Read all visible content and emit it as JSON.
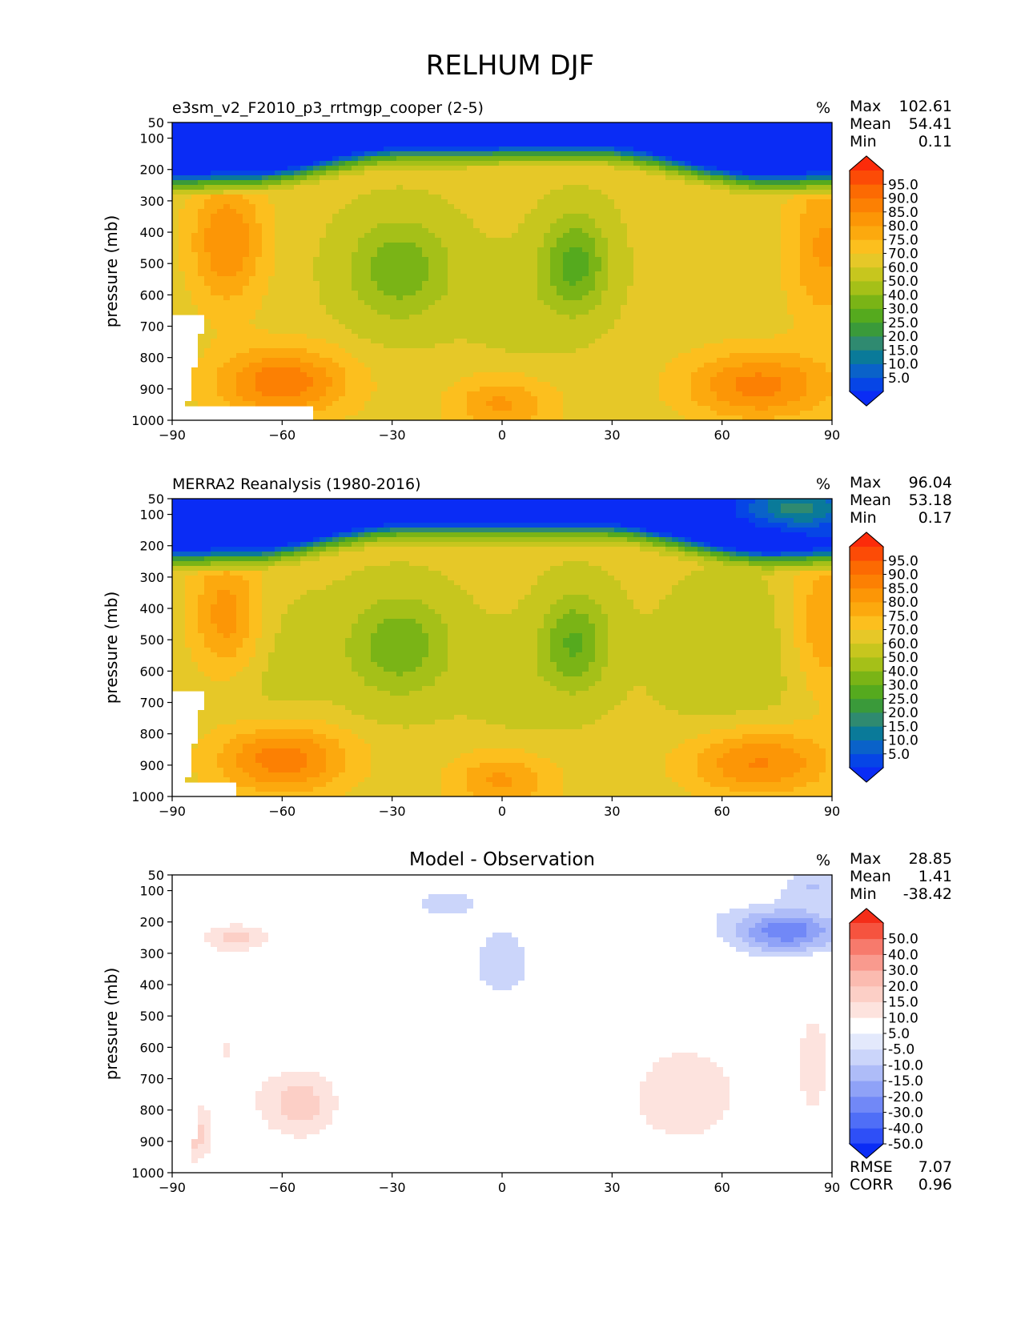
{
  "figure": {
    "title": "RELHUM DJF"
  },
  "palettes": {
    "field": [
      "#0a2cf5",
      "#0645e6",
      "#0a62c9",
      "#0a7a99",
      "#2f8a70",
      "#3a9a3a",
      "#55aa1e",
      "#7ab416",
      "#a5c018",
      "#c7c61e",
      "#e6c828",
      "#fcbf1e",
      "#fca90e",
      "#fc9606",
      "#fc8003",
      "#fc6a02",
      "#fc4b06",
      "#fc2b0a"
    ],
    "diff": [
      "#0a2cf5",
      "#2e4ff7",
      "#4f6ef7",
      "#7188f7",
      "#8fa2f7",
      "#aebcf8",
      "#cbd5fa",
      "#e3e9fc",
      "#ffffff",
      "#fde3de",
      "#fccfc6",
      "#fbbbb0",
      "#f99a8e",
      "#f77a6c",
      "#f6533f",
      "#f52d18"
    ]
  },
  "chart_data": [
    {
      "type": "contour",
      "panel": "model",
      "title_left": "e3sm_v2_F2010_p3_rrtmgp_cooper (2-5)",
      "title_center": "",
      "units": "%",
      "ylabel": "pressure (mb)",
      "xlabel": "",
      "xlim": [
        -90,
        90
      ],
      "ylim": [
        50,
        1000
      ],
      "xticks": [
        "−90",
        "−60",
        "−30",
        "0",
        "30",
        "60",
        "90"
      ],
      "yticks": [
        "50",
        "100",
        "200",
        "300",
        "400",
        "500",
        "600",
        "700",
        "800",
        "900",
        "1000"
      ],
      "levels": [
        "95.0",
        "90.0",
        "85.0",
        "80.0",
        "75.0",
        "70.0",
        "60.0",
        "50.0",
        "40.0",
        "30.0",
        "25.0",
        "20.0",
        "15.0",
        "10.0",
        "5.0"
      ],
      "stats": {
        "top": [
          {
            "label": "Max",
            "value": "102.61"
          },
          {
            "label": "Mean",
            "value": "54.41"
          },
          {
            "label": "Min",
            "value": "0.11"
          }
        ],
        "bottom": []
      }
    },
    {
      "type": "contour",
      "panel": "observation",
      "title_left": "MERRA2 Reanalysis (1980-2016)",
      "title_center": "",
      "units": "%",
      "ylabel": "pressure (mb)",
      "xlabel": "",
      "xlim": [
        -90,
        90
      ],
      "ylim": [
        50,
        1000
      ],
      "xticks": [
        "−90",
        "−60",
        "−30",
        "0",
        "30",
        "60",
        "90"
      ],
      "yticks": [
        "50",
        "100",
        "200",
        "300",
        "400",
        "500",
        "600",
        "700",
        "800",
        "900",
        "1000"
      ],
      "levels": [
        "95.0",
        "90.0",
        "85.0",
        "80.0",
        "75.0",
        "70.0",
        "60.0",
        "50.0",
        "40.0",
        "30.0",
        "25.0",
        "20.0",
        "15.0",
        "10.0",
        "5.0"
      ],
      "stats": {
        "top": [
          {
            "label": "Max",
            "value": "96.04"
          },
          {
            "label": "Mean",
            "value": "53.18"
          },
          {
            "label": "Min",
            "value": "0.17"
          }
        ],
        "bottom": []
      }
    },
    {
      "type": "contour",
      "panel": "difference",
      "title_left": "",
      "title_center": "Model - Observation",
      "units": "%",
      "ylabel": "pressure (mb)",
      "xlabel": "",
      "xlim": [
        -90,
        90
      ],
      "ylim": [
        50,
        1000
      ],
      "xticks": [
        "−90",
        "−60",
        "−30",
        "0",
        "30",
        "60",
        "90"
      ],
      "yticks": [
        "50",
        "100",
        "200",
        "300",
        "400",
        "500",
        "600",
        "700",
        "800",
        "900",
        "1000"
      ],
      "levels": [
        "50.0",
        "40.0",
        "30.0",
        "20.0",
        "15.0",
        "10.0",
        "5.0",
        "-5.0",
        "-10.0",
        "-15.0",
        "-20.0",
        "-30.0",
        "-40.0",
        "-50.0"
      ],
      "stats": {
        "top": [
          {
            "label": "Max",
            "value": "28.85"
          },
          {
            "label": "Mean",
            "value": "1.41"
          },
          {
            "label": "Min",
            "value": "-38.42"
          }
        ],
        "bottom": [
          {
            "label": "RMSE",
            "value": "7.07"
          },
          {
            "label": "CORR",
            "value": "0.96"
          }
        ]
      }
    }
  ]
}
